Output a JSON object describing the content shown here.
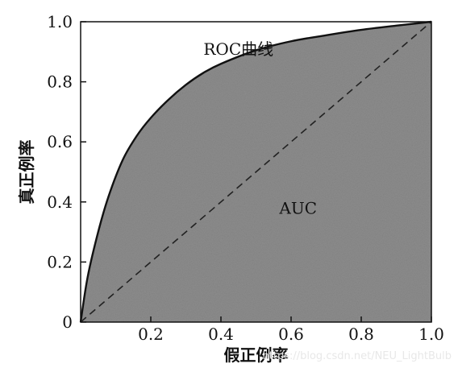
{
  "chart_data": {
    "type": "area",
    "title": "",
    "xlabel": "假正例率",
    "ylabel": "真正例率",
    "xlim": [
      0,
      1
    ],
    "ylim": [
      0,
      1
    ],
    "x_ticks": [
      "0.2",
      "0.4",
      "0.6",
      "0.8",
      "1.0"
    ],
    "y_ticks": [
      "0",
      "0.2",
      "0.4",
      "0.6",
      "0.8",
      "1.0"
    ],
    "grid": false,
    "series": [
      {
        "name": "ROC曲线",
        "x": [
          0,
          0.02,
          0.05,
          0.08,
          0.12,
          0.16,
          0.2,
          0.25,
          0.3,
          0.35,
          0.4,
          0.5,
          0.6,
          0.7,
          0.8,
          0.9,
          1.0
        ],
        "y": [
          0,
          0.15,
          0.3,
          0.42,
          0.54,
          0.62,
          0.68,
          0.74,
          0.79,
          0.83,
          0.86,
          0.905,
          0.935,
          0.955,
          0.973,
          0.987,
          1.0
        ]
      }
    ],
    "diagonal": {
      "x": [
        0,
        1
      ],
      "y": [
        0,
        1
      ],
      "style": "dashed"
    },
    "fill_color": "#8d8d8d",
    "annotations": [
      {
        "text": "ROC曲线",
        "x": 0.45,
        "y": 0.89
      },
      {
        "text": "AUC",
        "x": 0.62,
        "y": 0.36
      }
    ]
  },
  "watermark": "https://blog.csdn.net/NEU_LightBulb"
}
